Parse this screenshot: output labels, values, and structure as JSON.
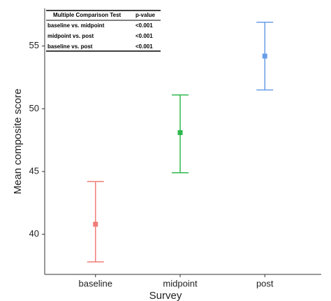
{
  "chart_data": {
    "type": "errorbar",
    "x_label": "Survey",
    "y_label": "Mean composite score",
    "categories": [
      "baseline",
      "midpoint",
      "post"
    ],
    "values": [
      40.8,
      48.1,
      54.2
    ],
    "lower": [
      37.8,
      44.9,
      51.5
    ],
    "upper": [
      44.2,
      51.1,
      56.9
    ],
    "colors": [
      "#f07c78",
      "#2eb84c",
      "#6a9ee8"
    ],
    "ylim": [
      36.8,
      58
    ],
    "yticks": [
      40,
      45,
      50,
      55
    ],
    "table": {
      "header": [
        "Multiple Comparison Test",
        "p-value"
      ],
      "rows": [
        [
          "baseline vs. midpoint",
          "<0.001"
        ],
        [
          "midpoint vs. post",
          "<0.001"
        ],
        [
          "baseline vs. post",
          "<0.001"
        ]
      ]
    }
  }
}
